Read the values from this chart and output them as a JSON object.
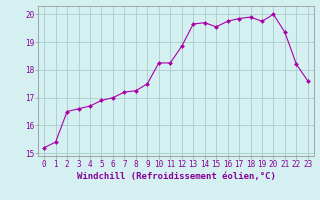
{
  "x": [
    0,
    1,
    2,
    3,
    4,
    5,
    6,
    7,
    8,
    9,
    10,
    11,
    12,
    13,
    14,
    15,
    16,
    17,
    18,
    19,
    20,
    21,
    22,
    23
  ],
  "y": [
    15.2,
    15.4,
    16.5,
    16.6,
    16.7,
    16.9,
    17.0,
    17.2,
    17.25,
    17.5,
    18.25,
    18.25,
    18.85,
    19.65,
    19.7,
    19.55,
    19.75,
    19.85,
    19.9,
    19.75,
    20.0,
    19.35,
    18.2,
    17.6
  ],
  "line_color": "#aa00aa",
  "marker": "D",
  "marker_size": 2.0,
  "bg_color": "#d4f0f0",
  "grid_color": "#aacccc",
  "xlabel": "Windchill (Refroidissement éolien,°C)",
  "xlabel_color": "#880099",
  "xlim": [
    -0.5,
    23.5
  ],
  "ylim": [
    14.9,
    20.3
  ],
  "yticks": [
    15,
    16,
    17,
    18,
    19,
    20
  ],
  "xticks": [
    0,
    1,
    2,
    3,
    4,
    5,
    6,
    7,
    8,
    9,
    10,
    11,
    12,
    13,
    14,
    15,
    16,
    17,
    18,
    19,
    20,
    21,
    22,
    23
  ],
  "tick_label_color": "#880099",
  "tick_label_fontsize": 5.5,
  "xlabel_fontsize": 6.5,
  "line_width": 0.8,
  "spine_color": "#999999"
}
